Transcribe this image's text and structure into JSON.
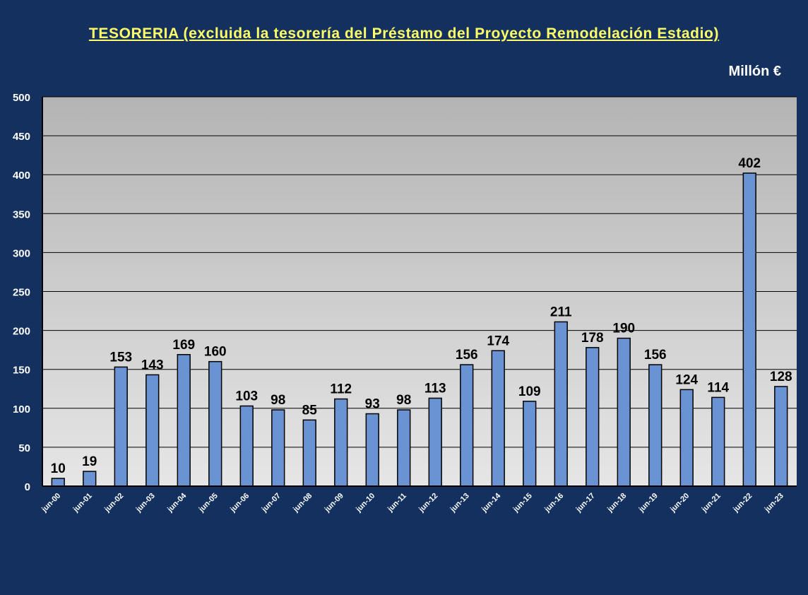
{
  "chart_data": {
    "type": "bar",
    "title": "TESORERIA (excluida la tesorería del Préstamo del Proyecto Remodelación Estadio)",
    "unit": "Millón €",
    "xlabel": "",
    "ylabel": "",
    "ylim": [
      0,
      500
    ],
    "yticks": [
      0,
      50,
      100,
      150,
      200,
      250,
      300,
      350,
      400,
      450,
      500
    ],
    "grid": true,
    "categories": [
      "jun-00",
      "jun-01",
      "jun-02",
      "jun-03",
      "jun-04",
      "jun-05",
      "jun-06",
      "jun-07",
      "jun-08",
      "jun-09",
      "jun-10",
      "jun-11",
      "jun-12",
      "jun-13",
      "jun-14",
      "jun-15",
      "jun-16",
      "jun-17",
      "jun-18",
      "jun-19",
      "jun-20",
      "jun-21",
      "jun-22",
      "jun-23"
    ],
    "values": [
      10,
      19,
      153,
      143,
      169,
      160,
      103,
      98,
      85,
      112,
      93,
      98,
      113,
      156,
      174,
      109,
      211,
      178,
      190,
      156,
      124,
      114,
      402,
      128
    ],
    "colors": {
      "bar": "#6a93d4",
      "bar_stroke": "#000000",
      "plot_bg_top": "#b4b4b4",
      "plot_bg_bottom": "#e6e6e6",
      "grid": "#000000",
      "page_bg": "#14305f",
      "title": "#ffff66",
      "text": "#ffffff",
      "data_label": "#000000"
    }
  }
}
